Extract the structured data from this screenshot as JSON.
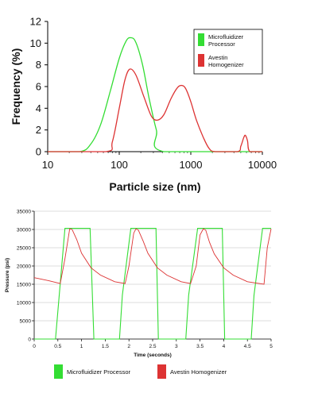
{
  "colors": {
    "microfluidizer": "#33dd33",
    "avestin": "#dd3333",
    "grid": "#bbbbbb",
    "axis": "#000000"
  },
  "chart_data": [
    {
      "type": "line",
      "title": "",
      "xlabel": "Particle size (nm)",
      "ylabel": "Frequency (%)",
      "x_scale": "log",
      "xlim": [
        10,
        10000
      ],
      "ylim": [
        0,
        12
      ],
      "x_ticks": [
        10,
        100,
        1000,
        10000
      ],
      "x_tick_labels": [
        "10",
        "100",
        "1000",
        "10000"
      ],
      "y_ticks": [
        0,
        2,
        4,
        6,
        8,
        10,
        12
      ],
      "grid": false,
      "legend": "top-right",
      "series": [
        {
          "name": "Microfluidizer Processor",
          "color": "#33dd33",
          "x": [
            10,
            28,
            40,
            55,
            75,
            100,
            125,
            145,
            170,
            210,
            260,
            330,
            420,
            10000
          ],
          "y": [
            0,
            0,
            0.7,
            2.5,
            5.6,
            8.6,
            10.2,
            10.5,
            10.1,
            8.1,
            5.0,
            2.0,
            0,
            0
          ]
        },
        {
          "name": "Avestin Homogenizer",
          "color": "#dd3333",
          "x": [
            10,
            65,
            80,
            100,
            120,
            140,
            170,
            220,
            280,
            340,
            420,
            530,
            650,
            750,
            850,
            1000,
            1200,
            1500,
            1800,
            2200,
            4500,
            5000,
            5500,
            5800,
            6200,
            6700,
            10000
          ],
          "y": [
            0,
            0,
            0.9,
            4.0,
            6.6,
            7.6,
            7.1,
            5.1,
            3.3,
            2.9,
            3.4,
            4.9,
            5.9,
            6.1,
            5.8,
            4.6,
            2.9,
            1.3,
            0.3,
            0,
            0,
            0.5,
            1.3,
            1.5,
            1.0,
            0,
            0
          ]
        }
      ]
    },
    {
      "type": "line",
      "title": "",
      "xlabel": "Time (seconds)",
      "ylabel": "Pressure (psi)",
      "xlim": [
        0,
        5
      ],
      "ylim": [
        0,
        35000
      ],
      "x_ticks": [
        0,
        0.5,
        1,
        1.5,
        2,
        2.5,
        3,
        3.5,
        4,
        4.5,
        5
      ],
      "x_tick_labels": [
        "0",
        "0.5",
        "1",
        "1.5",
        "2",
        "2.5",
        "3",
        "3.5",
        "4",
        "4.5",
        "5"
      ],
      "y_ticks": [
        0,
        5000,
        10000,
        15000,
        20000,
        25000,
        30000,
        35000
      ],
      "y_tick_labels": [
        "0",
        "5000",
        "10000",
        "15000",
        "20000",
        "25000",
        "30000",
        "35000"
      ],
      "grid": true,
      "legend": "bottom",
      "series": [
        {
          "name": "Microfluidizer Processor",
          "color": "#33dd33",
          "x": [
            0,
            0.45,
            0.65,
            1.18,
            1.26,
            1.8,
            1.86,
            2.04,
            2.57,
            2.62,
            3.2,
            3.26,
            3.45,
            3.97,
            4.02,
            4.58,
            4.64,
            4.82,
            5
          ],
          "y": [
            0,
            0,
            30300,
            30300,
            0,
            0,
            12000,
            30300,
            30300,
            0,
            0,
            12000,
            30300,
            30300,
            0,
            0,
            12000,
            30300,
            30300
          ]
        },
        {
          "name": "Avestin Homogenizer",
          "color": "#dd3333",
          "x": [
            0,
            0.3,
            0.55,
            0.65,
            0.75,
            0.8,
            0.9,
            1.0,
            1.2,
            1.4,
            1.7,
            1.92,
            2.0,
            2.1,
            2.15,
            2.2,
            2.3,
            2.4,
            2.6,
            2.8,
            3.1,
            3.3,
            3.42,
            3.5,
            3.57,
            3.62,
            3.7,
            3.8,
            4.0,
            4.2,
            4.5,
            4.85,
            4.92,
            5.0
          ],
          "y": [
            16800,
            16000,
            15200,
            22000,
            30200,
            30000,
            27200,
            23500,
            19500,
            17500,
            15700,
            15200,
            20000,
            29000,
            30200,
            29800,
            26800,
            23500,
            19500,
            17500,
            15700,
            15200,
            20000,
            28500,
            30200,
            29800,
            26500,
            23300,
            19500,
            17500,
            15700,
            15000,
            25000,
            30200
          ]
        }
      ]
    }
  ]
}
